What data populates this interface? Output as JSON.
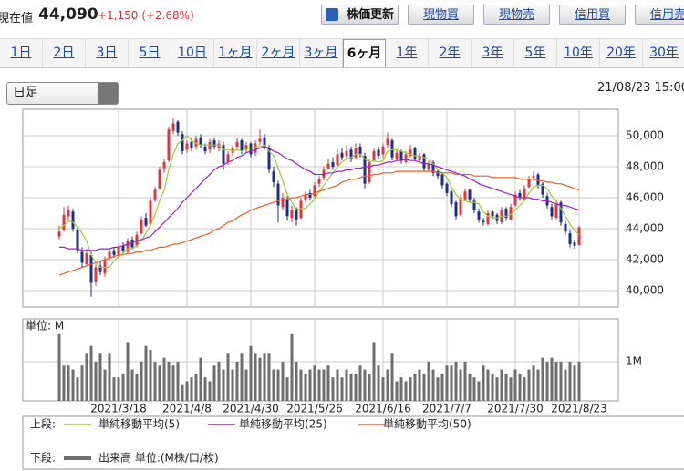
{
  "header": {
    "label": "現在値",
    "price": "44,090",
    "change": "+1,150 (+2.68%)"
  },
  "buttons": [
    "株価更新",
    "現物買",
    "現物売",
    "信用買",
    "信用売"
  ],
  "tabs": [
    {
      "label": "1日"
    },
    {
      "label": "2日"
    },
    {
      "label": "3日"
    },
    {
      "label": "5日"
    },
    {
      "label": "10日"
    },
    {
      "label": "1ヶ月"
    },
    {
      "label": "2ヶ月"
    },
    {
      "label": "3ヶ月"
    },
    {
      "label": "6ヶ月",
      "selected": true
    },
    {
      "label": "1年"
    },
    {
      "label": "2年"
    },
    {
      "label": "3年"
    },
    {
      "label": "5年"
    },
    {
      "label": "10年"
    },
    {
      "label": "20年"
    },
    {
      "label": "30年"
    }
  ],
  "period_select": "日足",
  "timestamp": "21/08/23 15:00",
  "legend": {
    "upper_label": "上段:",
    "lower_label": "下段:"
  },
  "chart_data": {
    "type": "candlestick",
    "categories": [
      null,
      null,
      null,
      null,
      null,
      null,
      null,
      null,
      null,
      null,
      null,
      null,
      null,
      "2021/3/18",
      null,
      null,
      null,
      null,
      null,
      null,
      null,
      null,
      null,
      null,
      null,
      null,
      null,
      null,
      "2021/4/8",
      null,
      null,
      null,
      null,
      null,
      null,
      null,
      null,
      null,
      null,
      null,
      null,
      null,
      "2021/4/30",
      null,
      null,
      null,
      null,
      null,
      null,
      null,
      null,
      null,
      null,
      null,
      null,
      null,
      "2021/5/26",
      null,
      null,
      null,
      null,
      null,
      null,
      null,
      null,
      null,
      null,
      null,
      null,
      null,
      null,
      "2021/6/16",
      null,
      null,
      null,
      null,
      null,
      null,
      null,
      null,
      null,
      null,
      null,
      null,
      null,
      "2021/7/7",
      null,
      null,
      null,
      null,
      null,
      null,
      null,
      null,
      null,
      null,
      null,
      null,
      null,
      null,
      "2021/7/30",
      null,
      null,
      null,
      null,
      null,
      null,
      null,
      null,
      null,
      null,
      null,
      null,
      null,
      "2021/8/23"
    ],
    "ohlc": [
      [
        43500,
        44200,
        43300,
        43800
      ],
      [
        43900,
        45400,
        43800,
        44900
      ],
      [
        44800,
        45500,
        44500,
        45200
      ],
      [
        45100,
        45300,
        43800,
        44000
      ],
      [
        43900,
        44100,
        42400,
        42600
      ],
      [
        42500,
        42800,
        41500,
        41800
      ],
      [
        41700,
        42700,
        41600,
        42400
      ],
      [
        42300,
        42500,
        39600,
        40500
      ],
      [
        40600,
        41700,
        40300,
        41500
      ],
      [
        41600,
        41900,
        41000,
        41200
      ],
      [
        41100,
        42200,
        40900,
        42000
      ],
      [
        42100,
        42700,
        41900,
        42500
      ],
      [
        42600,
        42800,
        42100,
        42300
      ],
      [
        42200,
        43000,
        42100,
        42800
      ],
      [
        42900,
        43100,
        42400,
        42600
      ],
      [
        42500,
        43400,
        42400,
        43200
      ],
      [
        43300,
        43500,
        42700,
        42800
      ],
      [
        42900,
        43800,
        42800,
        43600
      ],
      [
        43700,
        44800,
        43600,
        44600
      ],
      [
        44700,
        45000,
        44100,
        44200
      ],
      [
        44300,
        46000,
        44200,
        45800
      ],
      [
        45900,
        46700,
        45700,
        46500
      ],
      [
        46600,
        48000,
        46500,
        47800
      ],
      [
        47900,
        48500,
        47600,
        48300
      ],
      [
        48400,
        50600,
        48300,
        50400
      ],
      [
        50300,
        51100,
        50100,
        50800
      ],
      [
        50900,
        51000,
        50000,
        50200
      ],
      [
        50100,
        50300,
        48800,
        49000
      ],
      [
        49100,
        49700,
        48900,
        49500
      ],
      [
        49600,
        49900,
        49000,
        49200
      ],
      [
        49300,
        50000,
        49100,
        49800
      ],
      [
        49900,
        50100,
        49200,
        49400
      ],
      [
        49300,
        49500,
        48800,
        49000
      ],
      [
        49100,
        49800,
        48900,
        49600
      ],
      [
        49700,
        49900,
        49100,
        49300
      ],
      [
        49200,
        49700,
        49000,
        49500
      ],
      [
        49400,
        49600,
        47800,
        48200
      ],
      [
        48300,
        49000,
        48100,
        48800
      ],
      [
        48900,
        49400,
        48700,
        49200
      ],
      [
        49300,
        49900,
        49100,
        49600
      ],
      [
        49700,
        49800,
        48800,
        49000
      ],
      [
        49100,
        49600,
        48900,
        49400
      ],
      [
        49500,
        49600,
        48600,
        48800
      ],
      [
        48900,
        49700,
        48700,
        49500
      ],
      [
        49600,
        50400,
        49400,
        49800
      ],
      [
        49900,
        50100,
        49100,
        49300
      ],
      [
        49200,
        49400,
        47600,
        47800
      ],
      [
        47700,
        48000,
        46700,
        47000
      ],
      [
        46900,
        47100,
        44400,
        45500
      ],
      [
        45400,
        46300,
        45200,
        46000
      ],
      [
        45900,
        46100,
        44500,
        44800
      ],
      [
        44700,
        45500,
        44400,
        45200
      ],
      [
        45300,
        45400,
        44200,
        44600
      ],
      [
        44700,
        46000,
        44600,
        45800
      ],
      [
        45900,
        46400,
        45700,
        46200
      ],
      [
        46300,
        46500,
        45800,
        46000
      ],
      [
        46100,
        47000,
        46000,
        46800
      ],
      [
        46900,
        47400,
        46700,
        47200
      ],
      [
        47300,
        48000,
        47100,
        47800
      ],
      [
        47900,
        48500,
        47800,
        48200
      ],
      [
        48300,
        48600,
        47800,
        48000
      ],
      [
        48100,
        49100,
        48000,
        48800
      ],
      [
        48900,
        49200,
        48400,
        48600
      ],
      [
        48700,
        49400,
        48500,
        49000
      ],
      [
        49100,
        49300,
        48300,
        48500
      ],
      [
        48600,
        49500,
        48500,
        49200
      ],
      [
        49300,
        49500,
        48600,
        48800
      ],
      [
        48700,
        48900,
        46600,
        46900
      ],
      [
        47000,
        48500,
        46900,
        48300
      ],
      [
        48400,
        49200,
        48300,
        49000
      ],
      [
        49100,
        49300,
        48500,
        48700
      ],
      [
        48800,
        49500,
        48600,
        49300
      ],
      [
        49400,
        50200,
        49200,
        49800
      ],
      [
        49700,
        49800,
        48400,
        48600
      ],
      [
        48500,
        49100,
        48400,
        48900
      ],
      [
        49000,
        49100,
        48200,
        48400
      ],
      [
        48300,
        49000,
        48200,
        48800
      ],
      [
        48700,
        49400,
        48600,
        49100
      ],
      [
        49200,
        49300,
        48400,
        48500
      ],
      [
        48400,
        48900,
        48300,
        48700
      ],
      [
        48800,
        48900,
        47700,
        47900
      ],
      [
        47800,
        48400,
        47700,
        48200
      ],
      [
        48300,
        48400,
        47400,
        47600
      ],
      [
        47700,
        47800,
        47200,
        47400
      ],
      [
        47500,
        47600,
        46600,
        46800
      ],
      [
        46900,
        47000,
        46100,
        46300
      ],
      [
        46400,
        46500,
        45400,
        45600
      ],
      [
        45700,
        45800,
        44600,
        44800
      ],
      [
        44900,
        46200,
        44800,
        46000
      ],
      [
        45900,
        46600,
        45800,
        46400
      ],
      [
        46500,
        46600,
        45700,
        45900
      ],
      [
        45800,
        46000,
        45000,
        45200
      ],
      [
        45100,
        45300,
        44400,
        44600
      ],
      [
        44500,
        44700,
        44200,
        44400
      ],
      [
        44300,
        45200,
        44200,
        45000
      ],
      [
        45100,
        45200,
        44600,
        44800
      ],
      [
        44900,
        45000,
        44300,
        44500
      ],
      [
        44400,
        45400,
        44300,
        45200
      ],
      [
        45300,
        45400,
        44500,
        44700
      ],
      [
        44600,
        45600,
        44500,
        45400
      ],
      [
        45500,
        46400,
        45400,
        46200
      ],
      [
        46300,
        46500,
        45800,
        46000
      ],
      [
        45900,
        46800,
        45800,
        46600
      ],
      [
        46700,
        47400,
        46600,
        47200
      ],
      [
        47300,
        47700,
        47100,
        47400
      ],
      [
        47500,
        47600,
        46600,
        46800
      ],
      [
        46900,
        47000,
        46000,
        46200
      ],
      [
        46100,
        46300,
        45300,
        45500
      ],
      [
        45400,
        45600,
        44600,
        44800
      ],
      [
        44700,
        45800,
        44600,
        45600
      ],
      [
        45700,
        45800,
        44200,
        44400
      ],
      [
        44300,
        44500,
        43600,
        43800
      ],
      [
        43700,
        43900,
        42800,
        43000
      ],
      [
        43100,
        43300,
        42700,
        42900
      ],
      [
        42940,
        44200,
        42900,
        44090
      ]
    ],
    "up_color": "#e0353c",
    "down_color": "#1c2d8c",
    "ylim": [
      38941,
      51706
    ],
    "yticks": [
      {
        "value": 40000,
        "label": "40,000"
      },
      {
        "value": 42000,
        "label": "42,000"
      },
      {
        "value": 44000,
        "label": "44,000"
      },
      {
        "value": 46000,
        "label": "46,000"
      },
      {
        "value": 48000,
        "label": "48,000"
      },
      {
        "value": 50000,
        "label": "50,000"
      }
    ],
    "grid": true,
    "series": [
      {
        "name": "単純移動平均(5)",
        "color": "#9acd32",
        "values": [
          44000,
          44200,
          44500,
          44400,
          44100,
          43700,
          43200,
          42300,
          41800,
          41500,
          41500,
          41500,
          41900,
          42200,
          42400,
          42700,
          42700,
          42900,
          43200,
          43700,
          44200,
          44900,
          45800,
          46500,
          47800,
          48800,
          49500,
          49700,
          50000,
          49700,
          49500,
          49400,
          49400,
          49400,
          49400,
          49400,
          49100,
          49100,
          49000,
          49100,
          49000,
          49200,
          49200,
          49300,
          49300,
          49400,
          49000,
          48700,
          47900,
          47100,
          46200,
          45700,
          45200,
          45300,
          45300,
          45600,
          45900,
          46400,
          46800,
          47200,
          47600,
          48000,
          48300,
          48500,
          48600,
          48800,
          48800,
          48500,
          48300,
          48400,
          48300,
          48400,
          49000,
          49100,
          49100,
          49000,
          48900,
          48800,
          48700,
          48700,
          48600,
          48500,
          48200,
          47800,
          47600,
          47300,
          46700,
          46200,
          45900,
          45800,
          45700,
          45700,
          45600,
          45100,
          44800,
          44700,
          44700,
          44800,
          44800,
          44900,
          45200,
          45500,
          45800,
          46300,
          46700,
          46800,
          46800,
          46600,
          46100,
          45800,
          45300,
          44800,
          44300,
          43900,
          43600
        ]
      },
      {
        "name": "単純移動平均(25)",
        "color": "#a020c8",
        "values": [
          42800,
          42800,
          42700,
          42700,
          42700,
          42600,
          42600,
          42600,
          42600,
          42700,
          42700,
          42700,
          42800,
          42800,
          42900,
          43000,
          43100,
          43200,
          43300,
          43400,
          43500,
          43800,
          44100,
          44400,
          44700,
          45000,
          45300,
          45700,
          46000,
          46300,
          46600,
          46900,
          47200,
          47500,
          47800,
          48000,
          48100,
          48300,
          48400,
          48600,
          48700,
          48900,
          49000,
          49100,
          49200,
          49300,
          49200,
          49000,
          48900,
          48700,
          48500,
          48400,
          48200,
          48000,
          47800,
          47700,
          47500,
          47500,
          47500,
          47600,
          47600,
          47700,
          47700,
          47800,
          47800,
          47900,
          47900,
          48000,
          48000,
          48100,
          48100,
          48200,
          48300,
          48300,
          48400,
          48400,
          48500,
          48400,
          48400,
          48300,
          48200,
          48200,
          48100,
          48000,
          47900,
          47800,
          47700,
          47600,
          47500,
          47400,
          47200,
          47100,
          46900,
          46800,
          46700,
          46600,
          46500,
          46400,
          46300,
          46200,
          46100,
          46000,
          46000,
          46000,
          45900,
          45900,
          45800,
          45800,
          45700,
          45600,
          45500,
          45500,
          45400,
          45300,
          45200
        ]
      },
      {
        "name": "単純移動平均(50)",
        "color": "#e8602c",
        "values": [
          41000,
          41100,
          41200,
          41300,
          41400,
          41500,
          41600,
          41700,
          41800,
          41900,
          42000,
          42100,
          42200,
          42300,
          42300,
          42400,
          42400,
          42500,
          42500,
          42600,
          42600,
          42700,
          42800,
          42800,
          42900,
          43000,
          43000,
          43100,
          43200,
          43300,
          43400,
          43500,
          43600,
          43700,
          43900,
          44000,
          44200,
          44400,
          44500,
          44700,
          44900,
          45000,
          45200,
          45300,
          45400,
          45500,
          45600,
          45700,
          45800,
          45900,
          45900,
          46000,
          46000,
          46100,
          46200,
          46200,
          46300,
          46400,
          46500,
          46600,
          46700,
          46800,
          47000,
          47100,
          47200,
          47200,
          47300,
          47400,
          47400,
          47500,
          47500,
          47600,
          47600,
          47600,
          47700,
          47700,
          47700,
          47700,
          47700,
          47700,
          47700,
          47700,
          47700,
          47600,
          47600,
          47600,
          47600,
          47500,
          47500,
          47500,
          47500,
          47400,
          47400,
          47400,
          47400,
          47300,
          47300,
          47300,
          47300,
          47300,
          47300,
          47200,
          47200,
          47200,
          47200,
          47100,
          47100,
          47000,
          47000,
          46900,
          46900,
          46800,
          46700,
          46600,
          46500
        ]
      }
    ],
    "volume": {
      "name": "出来高 単位:(M株/口/枚)",
      "unit_label": "単位: M",
      "color": "#6e6e6e",
      "values": [
        1.7,
        0.9,
        0.9,
        0.8,
        0.6,
        0.9,
        1.2,
        1.4,
        1.0,
        1.2,
        0.8,
        1.2,
        0.6,
        0.6,
        0.7,
        1.5,
        0.8,
        0.7,
        1.0,
        1.4,
        1.3,
        1.0,
        0.9,
        1.1,
        1.0,
        0.9,
        1.0,
        0.4,
        0.5,
        0.6,
        0.7,
        1.1,
        0.6,
        0.5,
        0.9,
        1.0,
        0.8,
        1.2,
        0.8,
        1.0,
        1.2,
        0.8,
        1.4,
        1.2,
        1.1,
        1.2,
        1.2,
        0.8,
        0.8,
        1.0,
        0.6,
        1.7,
        1.0,
        0.8,
        0.7,
        0.8,
        0.9,
        0.8,
        0.8,
        0.9,
        0.6,
        0.8,
        0.6,
        0.8,
        0.7,
        0.7,
        0.9,
        0.8,
        0.7,
        1.5,
        0.9,
        0.6,
        0.8,
        1.2,
        0.5,
        0.6,
        0.5,
        0.6,
        0.7,
        0.8,
        0.7,
        1.0,
        0.8,
        0.6,
        0.7,
        0.9,
        0.9,
        1.0,
        0.8,
        1.0,
        0.7,
        0.6,
        0.5,
        0.9,
        0.8,
        0.7,
        0.6,
        0.8,
        0.7,
        0.6,
        0.8,
        0.7,
        0.6,
        0.8,
        0.9,
        0.8,
        1.1,
        1.0,
        1.1,
        1.0,
        1.0,
        0.8,
        1.0,
        0.9,
        1.0
      ],
      "ylim": [
        0,
        2.09
      ],
      "yticks": [
        {
          "value": 1,
          "label": "1M"
        }
      ]
    }
  }
}
